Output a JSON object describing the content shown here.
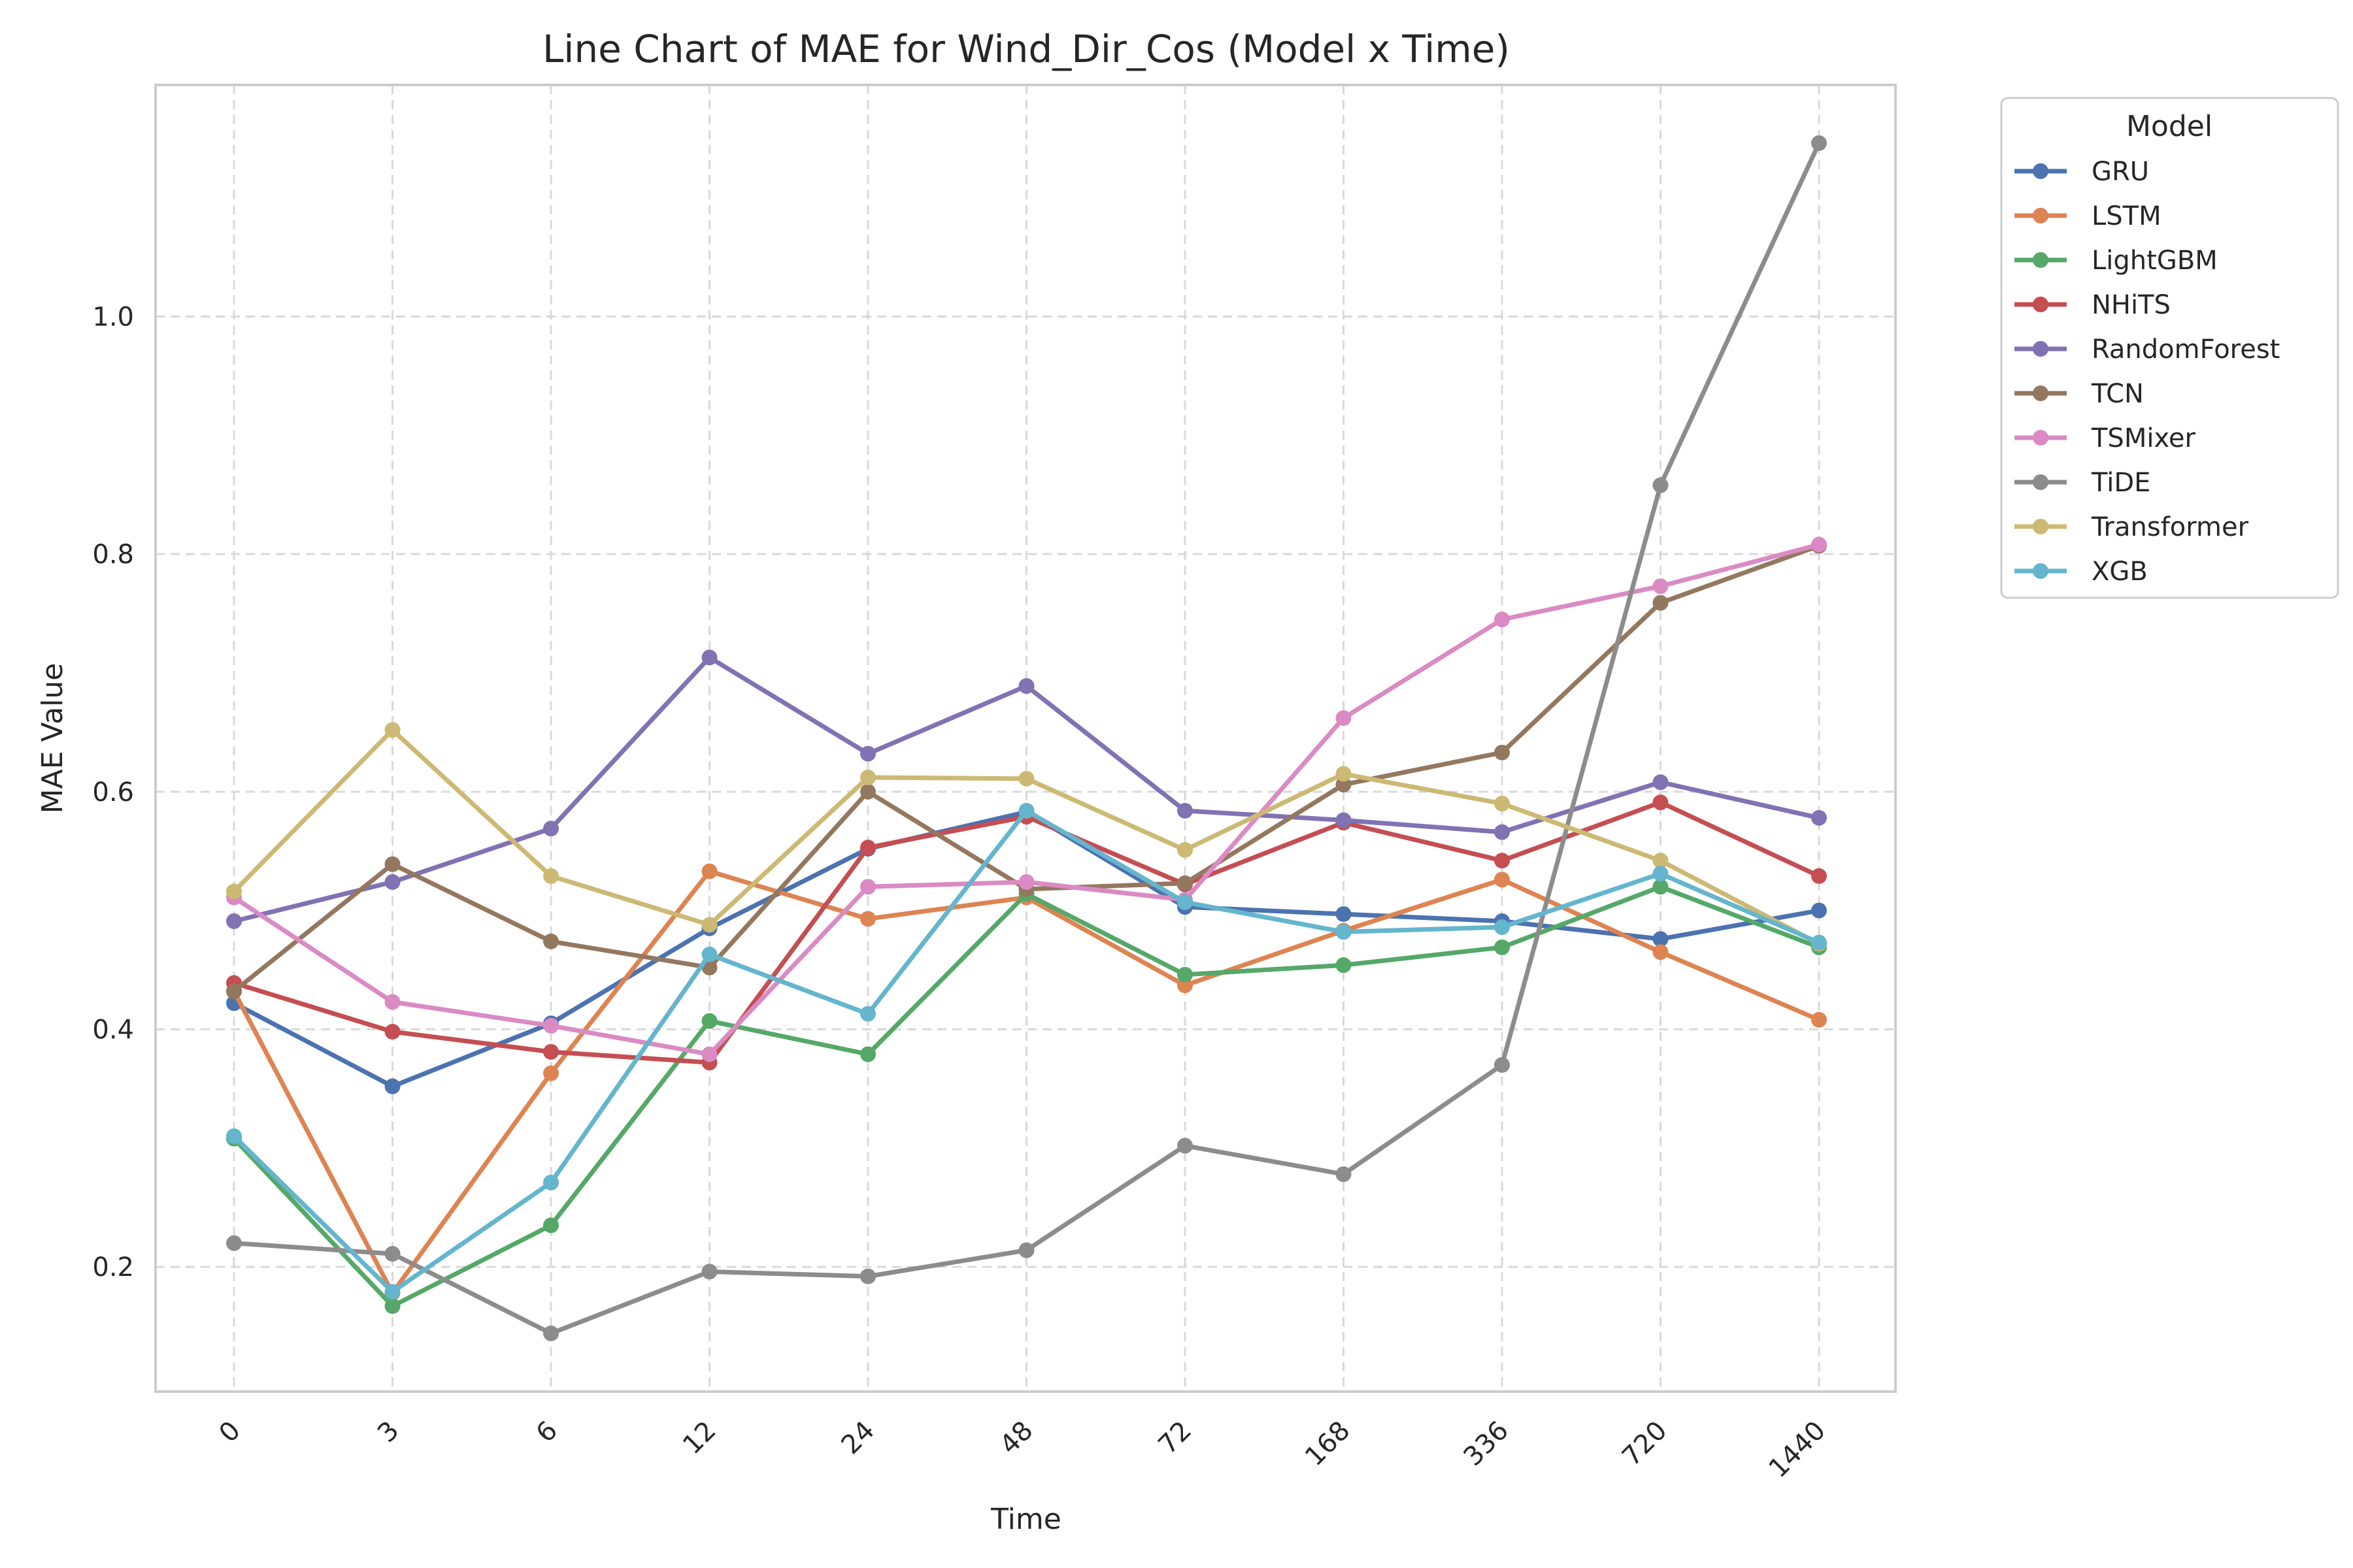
{
  "chart_data": {
    "type": "line",
    "title": "Line Chart of MAE for Wind_Dir_Cos (Model x Time)",
    "xlabel": "Time",
    "ylabel": "MAE Value",
    "categories": [
      "0",
      "3",
      "6",
      "12",
      "24",
      "48",
      "72",
      "168",
      "336",
      "720",
      "1440"
    ],
    "ylim": [
      0.095,
      1.195
    ],
    "yticks": [
      0.2,
      0.4,
      0.6,
      0.8,
      1.0
    ],
    "ytick_labels": [
      "0.2",
      "0.4",
      "0.6",
      "0.8",
      "1.0"
    ],
    "grid": true,
    "legend": {
      "title": "Model",
      "placement": "outside-right-top"
    },
    "series": [
      {
        "name": "GRU",
        "color": "#4c72b0",
        "values": [
          0.422,
          0.352,
          0.405,
          0.485,
          0.552,
          0.583,
          0.503,
          0.497,
          0.491,
          0.476,
          0.5
        ]
      },
      {
        "name": "LSTM",
        "color": "#dd8452",
        "values": [
          0.432,
          0.178,
          0.363,
          0.533,
          0.493,
          0.511,
          0.437,
          0.483,
          0.526,
          0.465,
          0.408
        ]
      },
      {
        "name": "LightGBM",
        "color": "#55a868",
        "values": [
          0.308,
          0.167,
          0.235,
          0.407,
          0.379,
          0.514,
          0.446,
          0.454,
          0.469,
          0.52,
          0.469
        ]
      },
      {
        "name": "NHiTS",
        "color": "#c44e52",
        "values": [
          0.439,
          0.398,
          0.381,
          0.372,
          0.553,
          0.579,
          0.522,
          0.574,
          0.542,
          0.591,
          0.529
        ]
      },
      {
        "name": "RandomForest",
        "color": "#8172b3",
        "values": [
          0.491,
          0.524,
          0.569,
          0.713,
          0.632,
          0.689,
          0.584,
          0.576,
          0.566,
          0.608,
          0.578
        ]
      },
      {
        "name": "TCN",
        "color": "#937860",
        "values": [
          0.432,
          0.539,
          0.474,
          0.452,
          0.6,
          0.518,
          0.523,
          0.606,
          0.633,
          0.759,
          0.807
        ]
      },
      {
        "name": "TSMixer",
        "color": "#da8bc3",
        "values": [
          0.511,
          0.423,
          0.403,
          0.379,
          0.52,
          0.524,
          0.509,
          0.662,
          0.745,
          0.773,
          0.808
        ]
      },
      {
        "name": "TiDE",
        "color": "#8c8c8c",
        "values": [
          0.22,
          0.211,
          0.144,
          0.196,
          0.192,
          0.214,
          0.302,
          0.278,
          0.37,
          0.858,
          1.146
        ]
      },
      {
        "name": "Transformer",
        "color": "#ccb974",
        "values": [
          0.516,
          0.652,
          0.529,
          0.488,
          0.612,
          0.611,
          0.551,
          0.615,
          0.59,
          0.542,
          0.472
        ]
      },
      {
        "name": "XGB",
        "color": "#64b5cd",
        "values": [
          0.31,
          0.179,
          0.271,
          0.463,
          0.413,
          0.584,
          0.507,
          0.482,
          0.486,
          0.531,
          0.473
        ]
      }
    ]
  }
}
